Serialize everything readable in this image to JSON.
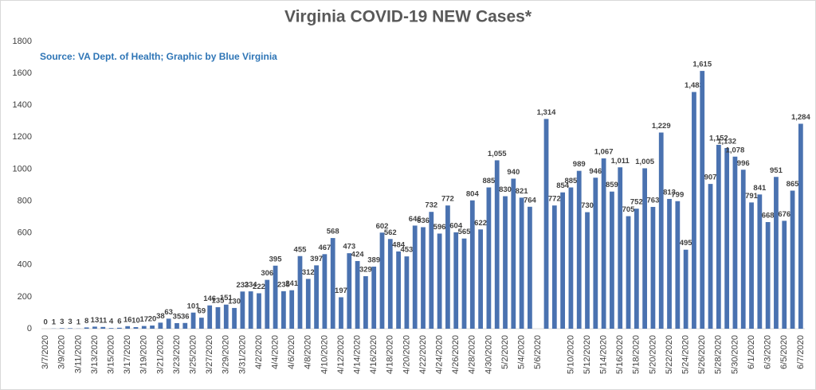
{
  "chart_data": {
    "type": "bar",
    "title": "Virginia COVID-19 NEW Cases*",
    "subtitle": "Source: VA Dept. of Health; Graphic by Blue Virginia",
    "color": "#4a72b0",
    "categories": [
      "3/7/2020",
      null,
      "3/9/2020",
      null,
      "3/11/2020",
      null,
      "3/13/2020",
      null,
      "3/15/2020",
      null,
      "3/17/2020",
      null,
      "3/19/2020",
      null,
      "3/21/2020",
      null,
      "3/23/2020",
      null,
      "3/25/2020",
      null,
      "3/27/2020",
      null,
      "3/29/2020",
      null,
      "3/31/2020",
      null,
      "4/2/2020",
      null,
      "4/4/2020",
      null,
      "4/6/2020",
      null,
      "4/8/2020",
      null,
      "4/10/2020",
      null,
      "4/12/2020",
      null,
      "4/14/2020",
      null,
      "4/16/2020",
      null,
      "4/18/2020",
      null,
      "4/20/2020",
      null,
      "4/22/2020",
      null,
      "4/24/2020",
      null,
      "4/26/2020",
      null,
      "4/28/2020",
      null,
      "4/30/2020",
      null,
      "5/2/2020",
      null,
      "5/4/2020",
      null,
      "5/6/2020",
      null,
      null,
      null,
      "5/10/2020",
      null,
      "5/12/2020",
      null,
      "5/14/2020",
      null,
      "5/16/2020",
      null,
      "5/18/2020",
      null,
      "5/20/2020",
      null,
      "5/22/2020",
      null,
      "5/24/2020",
      null,
      "5/26/2020",
      null,
      "5/28/2020",
      null,
      "5/30/2020",
      null,
      "6/1/2020",
      null,
      "6/3/2020",
      null,
      "6/5/2020",
      null,
      "6/7/2020"
    ],
    "values": [
      0,
      1,
      3,
      3,
      1,
      8,
      13,
      11,
      4,
      6,
      16,
      10,
      17,
      20,
      38,
      63,
      35,
      36,
      101,
      69,
      146,
      135,
      151,
      130,
      233,
      234,
      222,
      306,
      395,
      235,
      241,
      455,
      312,
      397,
      467,
      568,
      197,
      473,
      424,
      329,
      389,
      602,
      562,
      484,
      453,
      646,
      636,
      732,
      596,
      772,
      604,
      565,
      804,
      622,
      885,
      1055,
      830,
      940,
      821,
      764,
      null,
      1314,
      772,
      854,
      885,
      989,
      730,
      946,
      1067,
      859,
      1011,
      705,
      752,
      1005,
      763,
      1229,
      813,
      799,
      495,
      1483,
      1615,
      907,
      1152,
      1132,
      1078,
      996,
      791,
      841,
      668,
      951,
      676,
      865,
      1284
    ],
    "value_labels": [
      "0",
      "1",
      "3",
      "3",
      "1",
      "8",
      "13",
      "11",
      "4",
      "6",
      "16",
      "10",
      "17",
      "20",
      "38",
      "63",
      "35",
      "36",
      "101",
      "69",
      "146",
      "135",
      "151",
      "130",
      "233",
      "234",
      "222",
      "306",
      "395",
      "235",
      "241",
      "455",
      "312",
      "397",
      "467",
      "568",
      "197",
      "473",
      "424",
      "329",
      "389",
      "602",
      "562",
      "484",
      "453",
      "646",
      "636",
      "732",
      "596",
      "772",
      "604",
      "565",
      "804",
      "622",
      "885",
      "1,055",
      "830",
      "940",
      "821",
      "764",
      null,
      "1,314",
      "772",
      "854",
      "885",
      "989",
      "730",
      "946",
      "1,067",
      "859",
      "1,011",
      "705",
      "752",
      "1,005",
      "763",
      "1,229",
      "813",
      "799",
      "495",
      "1,483",
      "1,615",
      "907",
      "1,152",
      "1,132",
      "1,078",
      "996",
      "791",
      "841",
      "668",
      "951",
      "676",
      "865",
      "1,284"
    ],
    "ylim": [
      0,
      1800
    ],
    "yticks": [
      0,
      200,
      400,
      600,
      800,
      1000,
      1200,
      1400,
      1600,
      1800
    ],
    "grid": false
  }
}
